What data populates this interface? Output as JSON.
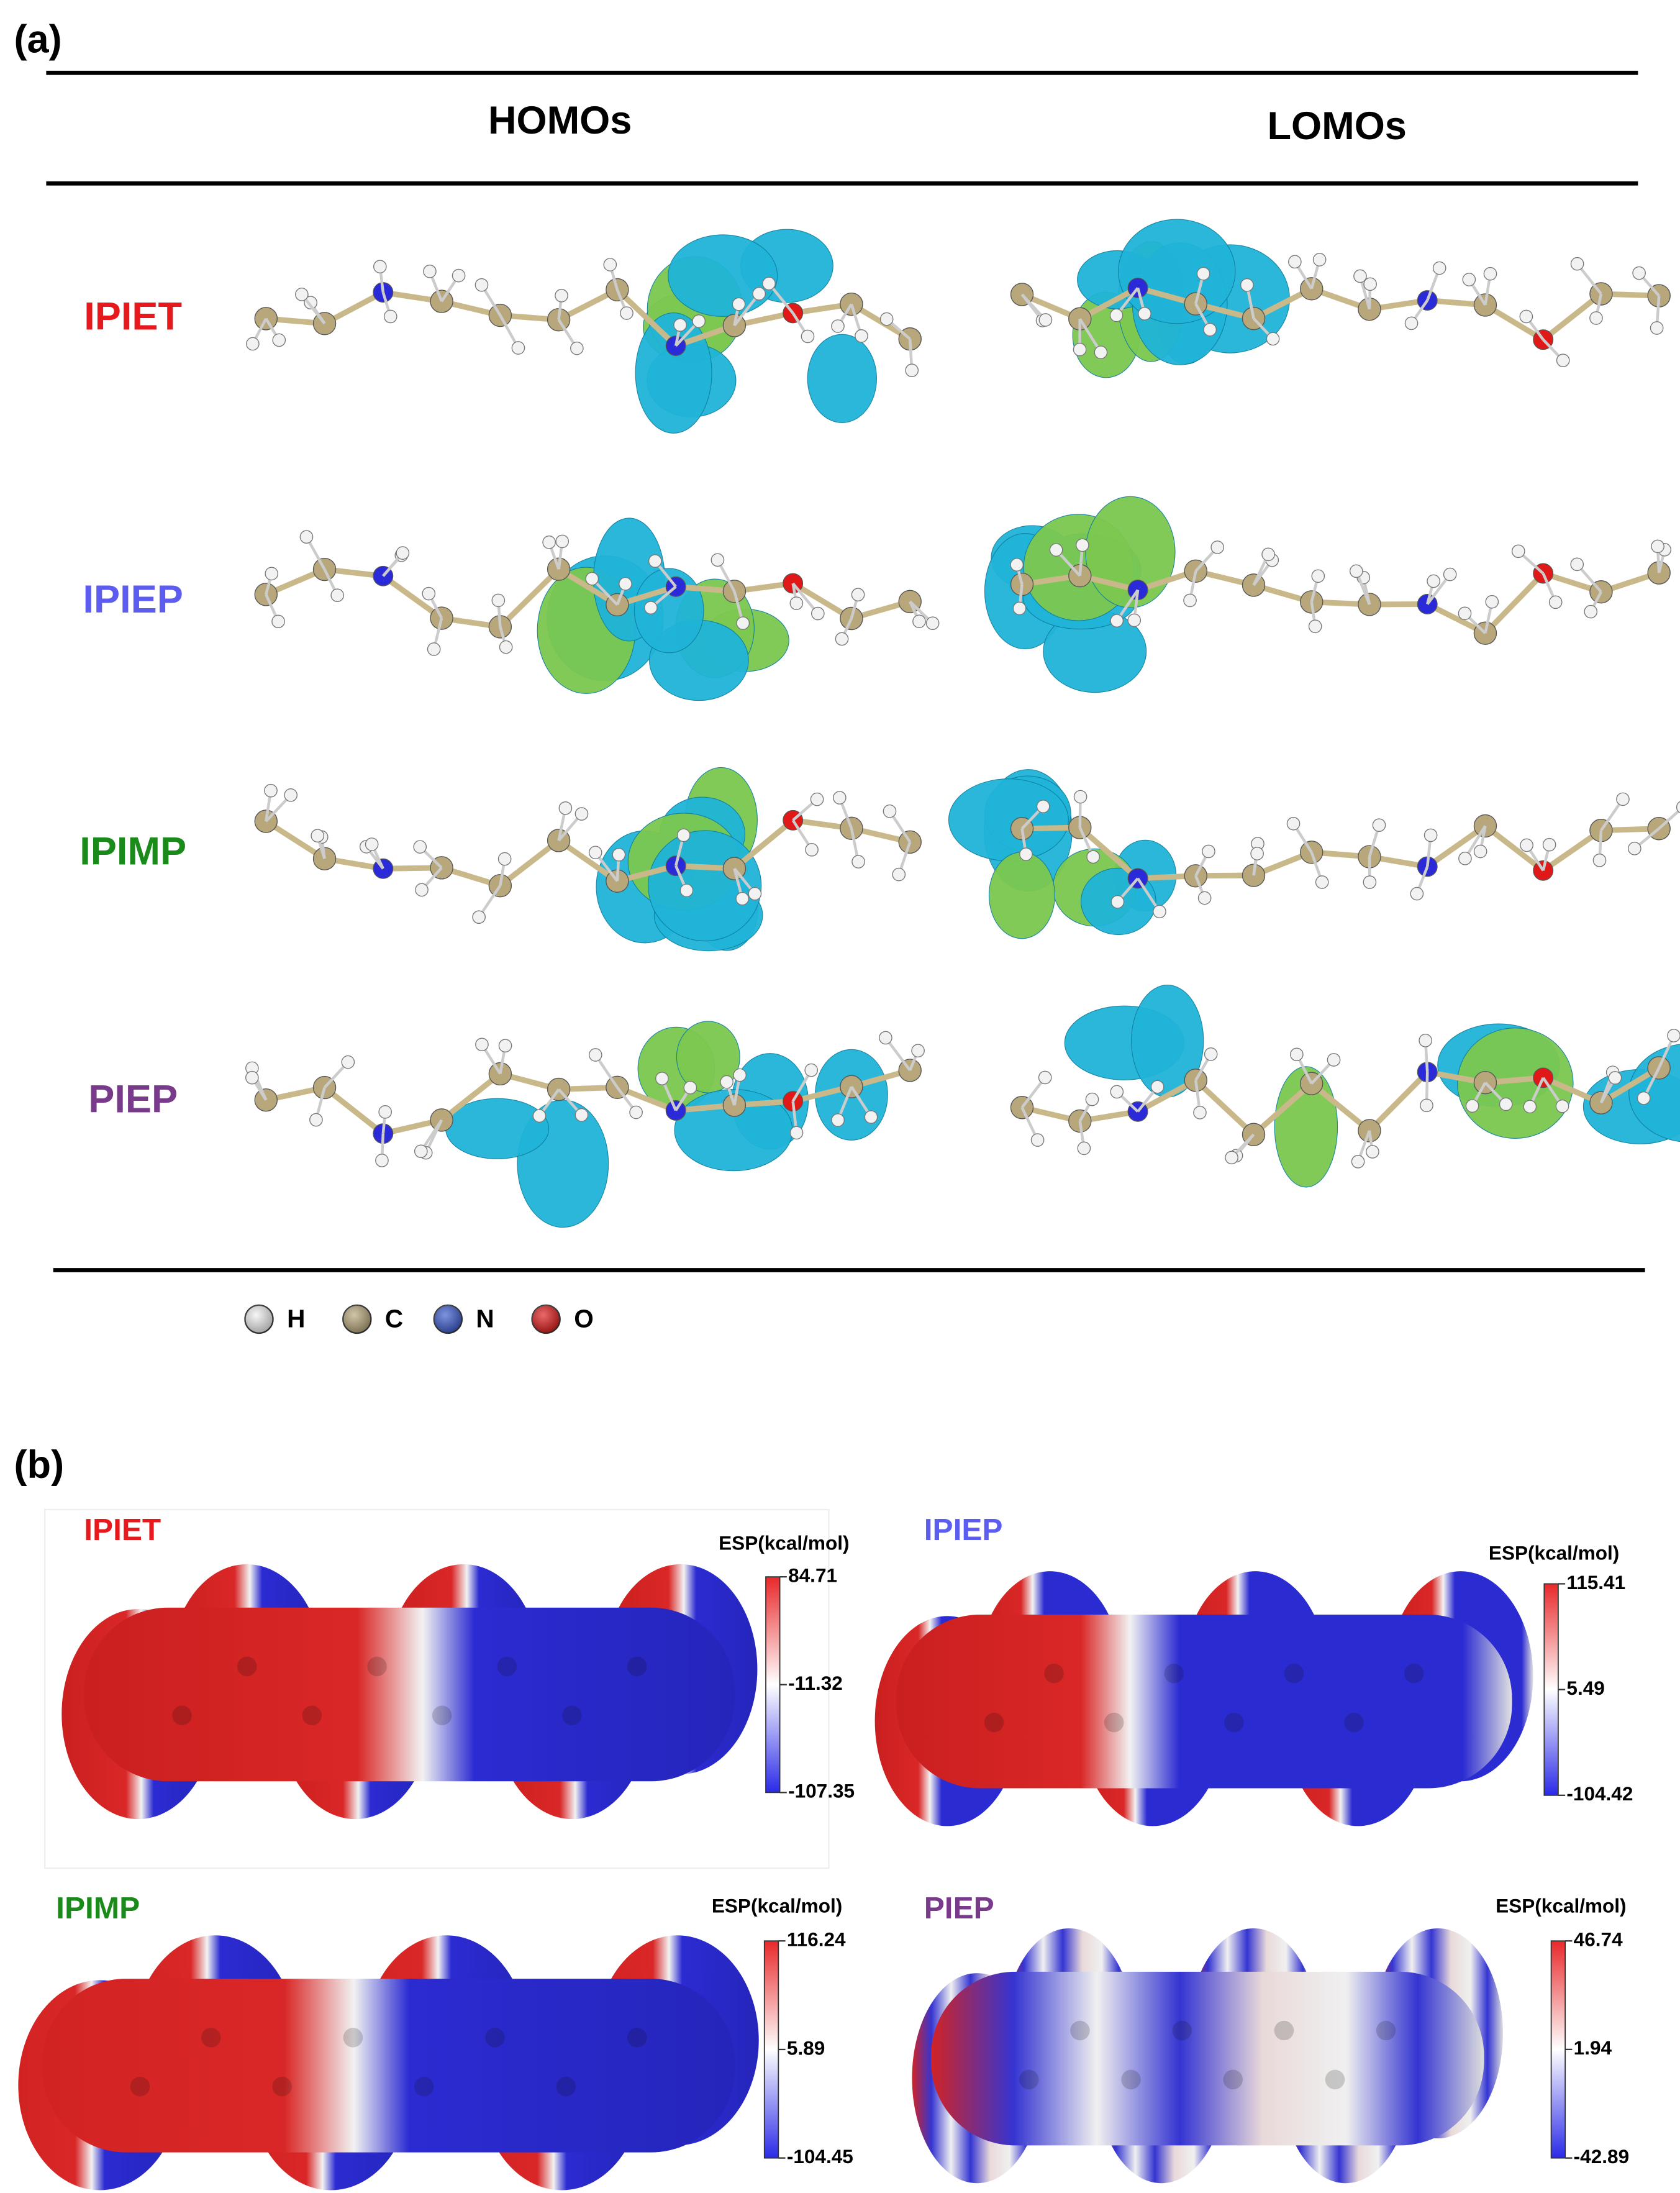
{
  "panel_a": {
    "label": "(a)",
    "columns": [
      "HOMOs",
      "LOMOs"
    ],
    "rows": [
      {
        "name": "IPIET",
        "color": "#e8191c"
      },
      {
        "name": "IPIEP",
        "color": "#5d5cf0"
      },
      {
        "name": "IPIMP",
        "color": "#1a8a1a"
      },
      {
        "name": "PIEP",
        "color": "#7a3a8c"
      }
    ],
    "legend": [
      "H",
      "C",
      "N",
      "O"
    ]
  },
  "panel_b": {
    "label": "(b)",
    "maps": [
      {
        "name": "IPIET",
        "color": "#e8191c",
        "unit": "ESP(kcal/mol)",
        "max": 84.71,
        "mid": -11.32,
        "min": -107.35
      },
      {
        "name": "IPIEP",
        "color": "#5d5cf0",
        "unit": "ESP(kcal/mol)",
        "max": 115.41,
        "mid": 5.49,
        "min": -104.42
      },
      {
        "name": "IPIMP",
        "color": "#1a8a1a",
        "unit": "ESP(kcal/mol)",
        "max": 116.24,
        "mid": 5.89,
        "min": -104.45
      },
      {
        "name": "PIEP",
        "color": "#7a3a8c",
        "unit": "ESP(kcal/mol)",
        "max": 46.74,
        "mid": 1.94,
        "min": -42.89
      }
    ]
  }
}
